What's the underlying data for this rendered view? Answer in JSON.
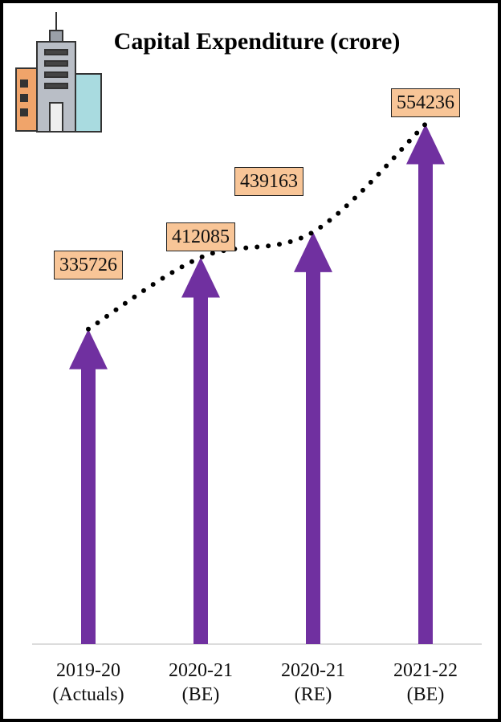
{
  "chart_data": {
    "type": "arrow-bar",
    "title": "Capital Expenditure (crore)",
    "categories": [
      "2019-20 (Actuals)",
      "2020-21 (BE)",
      "2020-21 (RE)",
      "2021-22 (BE)"
    ],
    "values": [
      335726,
      412085,
      439163,
      554236
    ],
    "color": "#7030a0",
    "label_color": "#f8c597",
    "trend_line": true,
    "ylim": [
      0,
      600000
    ]
  }
}
